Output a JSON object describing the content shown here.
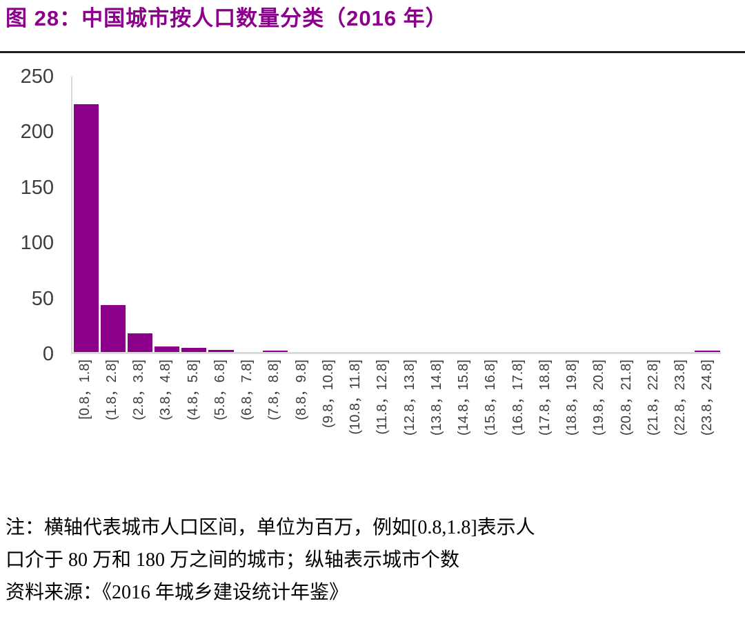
{
  "figure": {
    "title": "图 28：中国城市按人口数量分类（2016 年）"
  },
  "colors": {
    "accent": "#8B008B",
    "bar_fill": "#8B008B",
    "axis_line": "#d9d9d9",
    "tick_text": "#3d3d3d",
    "divider": "#1f1f1f"
  },
  "chart_data": {
    "type": "bar",
    "title": "中国城市按人口数量分类（2016 年）",
    "categories": [
      "[0.8，1.8]",
      "(1.8，2.8]",
      "(2.8，3.8]",
      "(3.8，4.8]",
      "(4.8，5.8]",
      "(5.8，6.8]",
      "(6.8，7.8]",
      "(7.8，8.8]",
      "(8.8，9.8]",
      "(9.8，10.8]",
      "(10.8，11.8]",
      "(11.8，12.8]",
      "(12.8，13.8]",
      "(13.8，14.8]",
      "(14.8，15.8]",
      "(15.8，16.8]",
      "(16.8，17.8]",
      "(17.8，18.8]",
      "(18.8，19.8]",
      "(19.8，20.8]",
      "(20.8，21.8]",
      "(21.8，22.8]",
      "(22.8，23.8]",
      "(23.8，24.8]"
    ],
    "values": [
      223,
      42,
      17,
      5,
      4,
      2,
      0,
      1,
      0,
      0,
      0,
      0,
      0,
      0,
      0,
      0,
      0,
      0,
      0,
      0,
      0,
      0,
      0,
      1
    ],
    "xlabel": "",
    "ylabel": "",
    "ylim": [
      0,
      250
    ],
    "yticks": [
      0,
      50,
      100,
      150,
      200,
      250
    ],
    "grid": false,
    "legend": false,
    "x_tick_rotation_deg": 90
  },
  "notes": {
    "line1": "注：横轴代表城市人口区间，单位为百万，例如[0.8,1.8]表示人",
    "line2": "口介于 80 万和 180 万之间的城市；纵轴表示城市个数",
    "source": "资料来源：《2016 年城乡建设统计年鉴》"
  }
}
